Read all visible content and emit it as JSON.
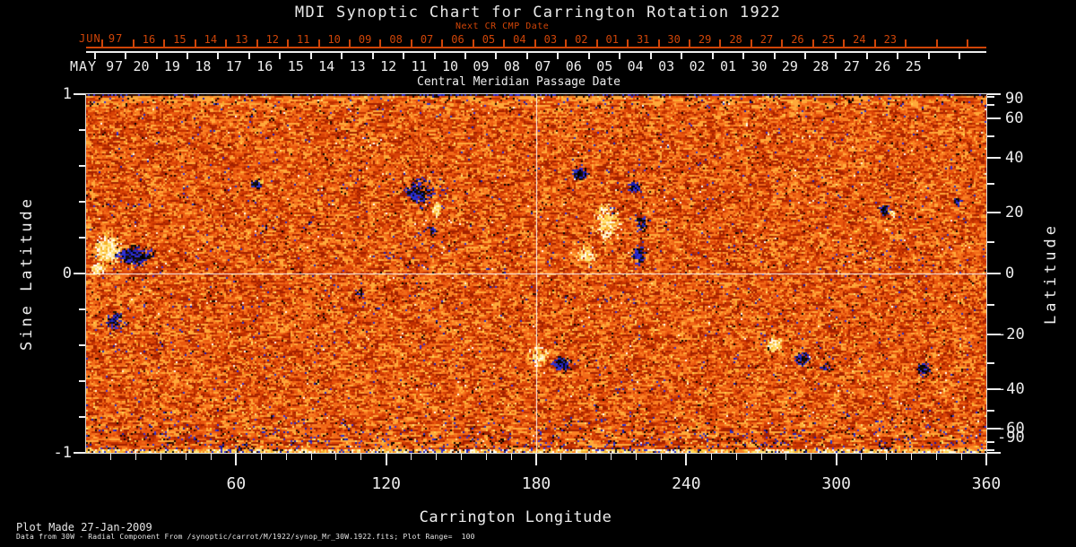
{
  "title": "MDI Synoptic Chart for Carrington Rotation 1922",
  "top_axis": {
    "next_cr_label": "Next CR CMP Date",
    "red_month": "JUN 97",
    "red_dates": [
      "16",
      "15",
      "14",
      "13",
      "12",
      "11",
      "10",
      "09",
      "08",
      "07",
      "06",
      "05",
      "04",
      "03",
      "02",
      "01",
      "31",
      "30",
      "29",
      "28",
      "27",
      "26",
      "25",
      "24",
      "23"
    ],
    "white_month": "MAY 97",
    "white_dates": [
      "20",
      "19",
      "18",
      "17",
      "16",
      "15",
      "14",
      "13",
      "12",
      "11",
      "10",
      "09",
      "08",
      "07",
      "06",
      "05",
      "04",
      "03",
      "02",
      "01",
      "30",
      "29",
      "28",
      "27",
      "26",
      "25"
    ],
    "cmp_label": "Central Meridian Passage Date"
  },
  "left_axis": {
    "title": "Sine Latitude",
    "major_ticks": [
      {
        "v": 1,
        "label": "1"
      },
      {
        "v": 0,
        "label": "0"
      },
      {
        "v": -1,
        "label": "-1"
      }
    ],
    "minor_ticks": [
      0.8,
      0.6,
      0.4,
      0.2,
      -0.2,
      -0.4,
      -0.6,
      -0.8
    ]
  },
  "right_axis": {
    "title": "Latitude",
    "major_ticks": [
      {
        "deg": 90,
        "label": "90"
      },
      {
        "deg": 60,
        "label": "60"
      },
      {
        "deg": 40,
        "label": "40"
      },
      {
        "deg": 20,
        "label": "20"
      },
      {
        "deg": 0,
        "label": "0"
      },
      {
        "deg": -20,
        "label": "-20"
      },
      {
        "deg": -40,
        "label": "-40"
      },
      {
        "deg": -60,
        "label": "-60"
      },
      {
        "deg": -90,
        "label": "-90"
      }
    ],
    "minor_ticks_deg": [
      80,
      70,
      50,
      30,
      10,
      -10,
      -30,
      -50,
      -70,
      -80
    ]
  },
  "bottom_axis": {
    "title": "Carrington Longitude",
    "major_ticks": [
      {
        "deg": 60,
        "label": "60"
      },
      {
        "deg": 120,
        "label": "120"
      },
      {
        "deg": 180,
        "label": "180"
      },
      {
        "deg": 240,
        "label": "240"
      },
      {
        "deg": 300,
        "label": "300"
      },
      {
        "deg": 360,
        "label": "360"
      }
    ],
    "minor_step_deg": 10,
    "range_deg": [
      0,
      360
    ]
  },
  "footer": {
    "line1": "Plot Made 27-Jan-2009",
    "line2": "Data from 30W - Radial Component From /synoptic/carrot/M/1922/synop_Mr_30W.1922.fits; Plot Range=  100"
  },
  "colors": {
    "background": "#000000",
    "axis_red": "#d04508",
    "axis_white": "#ededed",
    "map_base_orange": "#d84206",
    "negative_polarity_core": "#000000",
    "negative_polarity_fringe": "#2f22c8",
    "positive_polarity_core": "#ffffff",
    "positive_polarity_fringe": "#ffd34d"
  },
  "chart_data": {
    "type": "heatmap",
    "title": "MDI Synoptic Chart for Carrington Rotation 1922",
    "xlabel": "Carrington Longitude",
    "xlim": [
      0,
      360
    ],
    "x_major_ticks": [
      60,
      120,
      180,
      240,
      300,
      360
    ],
    "x_minor_step_deg": 10,
    "ylabel_left": "Sine Latitude",
    "ylim_sine": [
      -1,
      1
    ],
    "y_major_ticks_sine": [
      1,
      0,
      -1
    ],
    "ylabel_right": "Latitude",
    "y_ticks_latitude_deg": [
      90,
      60,
      40,
      20,
      0,
      -20,
      -40,
      -60,
      -90
    ],
    "top_axis_label": "Central Meridian Passage Date",
    "next_cr_cmp_dates": {
      "month": "JUN 97",
      "days": [
        "16",
        "15",
        "14",
        "13",
        "12",
        "11",
        "10",
        "09",
        "08",
        "07",
        "06",
        "05",
        "04",
        "03",
        "02",
        "01",
        "31",
        "30",
        "29",
        "28",
        "27",
        "26",
        "25",
        "24",
        "23"
      ]
    },
    "cmp_dates": {
      "month": "MAY 97",
      "days": [
        "20",
        "19",
        "18",
        "17",
        "16",
        "15",
        "14",
        "13",
        "12",
        "11",
        "10",
        "09",
        "08",
        "07",
        "06",
        "05",
        "04",
        "03",
        "02",
        "01",
        "30",
        "29",
        "28",
        "27",
        "26",
        "25"
      ]
    },
    "colormap": "orange-red solar magnetogram noise; negative field = black with blue fringe, positive field = white with yellow fringe",
    "plot_range_gauss": 100,
    "crosshair": {
      "longitude_deg": 180,
      "sine_latitude": 0
    },
    "active_regions": [
      {
        "lon": 8.5,
        "lat": 8,
        "pol": "positive",
        "w": 9,
        "h": 8,
        "density": "dense"
      },
      {
        "lon": 4.5,
        "lat": 2,
        "pol": "positive",
        "w": 4.5,
        "h": 4,
        "density": "dense"
      },
      {
        "lon": 19,
        "lat": 6,
        "pol": "negative",
        "w": 11.5,
        "h": 5,
        "density": "dense"
      },
      {
        "lon": 11,
        "lat": -15,
        "pol": "negative",
        "w": 7,
        "h": 6,
        "density": "sparse"
      },
      {
        "lon": 68,
        "lat": 30,
        "pol": "negative",
        "w": 3.5,
        "h": 3,
        "density": "dense"
      },
      {
        "lon": 70,
        "lat": 31,
        "pol": "positive",
        "w": 2,
        "h": 2,
        "density": "dense"
      },
      {
        "lon": 133,
        "lat": 27,
        "pol": "negative",
        "w": 10,
        "h": 9,
        "density": "sparse"
      },
      {
        "lon": 140,
        "lat": 21,
        "pol": "positive",
        "w": 3.5,
        "h": 4,
        "density": "dense"
      },
      {
        "lon": 138,
        "lat": 14,
        "pol": "negative",
        "w": 4,
        "h": 3,
        "density": "sparse"
      },
      {
        "lon": 197,
        "lat": 34,
        "pol": "negative",
        "w": 5.5,
        "h": 4,
        "density": "dense"
      },
      {
        "lon": 219,
        "lat": 29,
        "pol": "negative",
        "w": 5,
        "h": 4,
        "density": "sparse"
      },
      {
        "lon": 222,
        "lat": 16,
        "pol": "negative",
        "w": 4.5,
        "h": 6,
        "density": "sparse"
      },
      {
        "lon": 221,
        "lat": 6,
        "pol": "negative",
        "w": 4.5,
        "h": 4.5,
        "density": "dense"
      },
      {
        "lon": 208,
        "lat": 17,
        "pol": "positive",
        "w": 8.5,
        "h": 13,
        "density": "sparse"
      },
      {
        "lon": 200,
        "lat": 6,
        "pol": "positive",
        "w": 7,
        "h": 6,
        "density": "sparse"
      },
      {
        "lon": 319,
        "lat": 21,
        "pol": "negative",
        "w": 3.5,
        "h": 3,
        "density": "dense"
      },
      {
        "lon": 322,
        "lat": 20,
        "pol": "positive",
        "w": 2,
        "h": 2,
        "density": "dense"
      },
      {
        "lon": 348,
        "lat": 24,
        "pol": "negative",
        "w": 3,
        "h": 2.5,
        "density": "sparse"
      },
      {
        "lon": 190,
        "lat": -30,
        "pol": "negative",
        "w": 6.5,
        "h": 4.5,
        "density": "dense"
      },
      {
        "lon": 181,
        "lat": -27,
        "pol": "positive",
        "w": 7,
        "h": 7,
        "density": "sparse"
      },
      {
        "lon": 275,
        "lat": -23,
        "pol": "positive",
        "w": 5.5,
        "h": 4.5,
        "density": "dense"
      },
      {
        "lon": 286,
        "lat": -28,
        "pol": "negative",
        "w": 5,
        "h": 4,
        "density": "dense"
      },
      {
        "lon": 296,
        "lat": -31,
        "pol": "negative",
        "w": 3.5,
        "h": 3,
        "density": "sparse"
      },
      {
        "lon": 335,
        "lat": -32,
        "pol": "negative",
        "w": 5,
        "h": 4,
        "density": "dense"
      },
      {
        "lon": 109,
        "lat": -6,
        "pol": "negative",
        "w": 3,
        "h": 2.5,
        "density": "sparse"
      }
    ]
  }
}
